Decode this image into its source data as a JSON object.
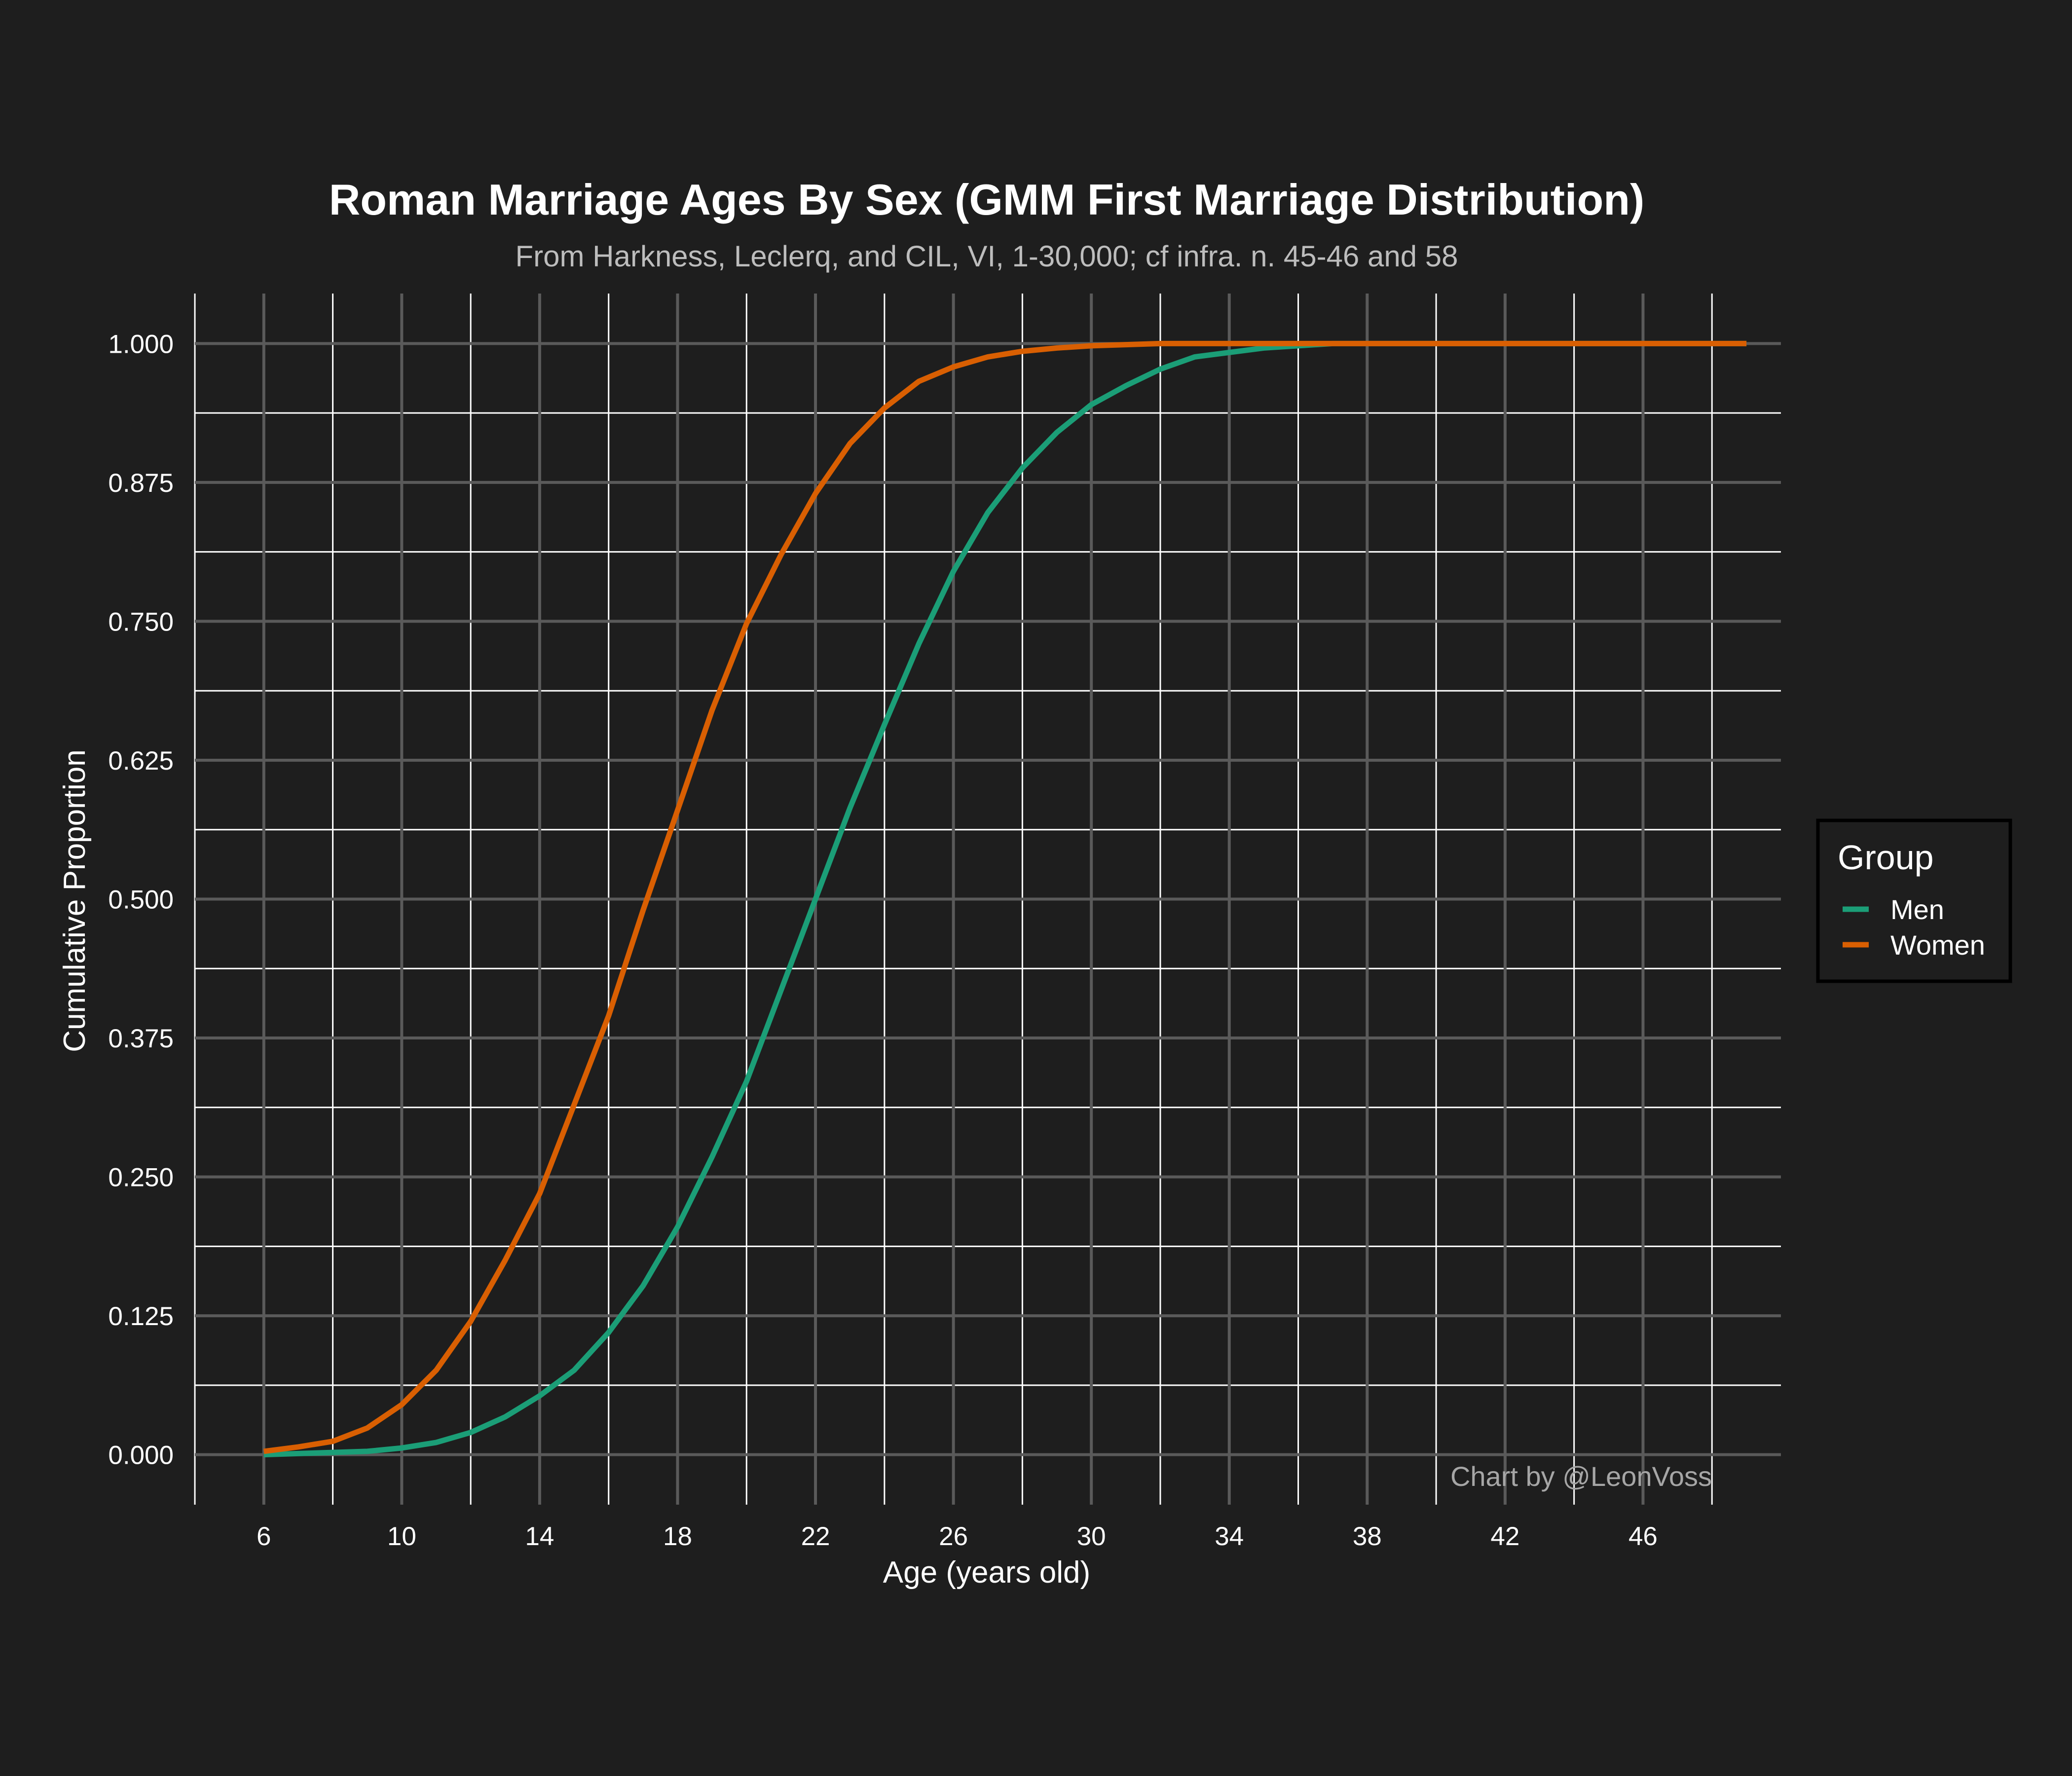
{
  "chart_data": {
    "type": "line",
    "title": "Roman Marriage Ages By Sex (GMM First Marriage Distribution)",
    "subtitle": "From Harkness, Leclerq, and CIL, VI, 1-30,000; cf infra. n. 45-46 and 58",
    "xlabel": "Age (years old)",
    "ylabel": "Cumulative Proportion",
    "caption": "Chart by @LeonVoss",
    "xlim": [
      4,
      50
    ],
    "ylim": [
      -0.045,
      1.045
    ],
    "x_ticks": [
      6,
      10,
      14,
      18,
      22,
      26,
      30,
      34,
      38,
      42,
      46
    ],
    "x_tick_labels": [
      "6",
      "10",
      "14",
      "18",
      "22",
      "26",
      "30",
      "34",
      "38",
      "42",
      "46"
    ],
    "y_ticks": [
      0,
      0.125,
      0.25,
      0.375,
      0.5,
      0.625,
      0.75,
      0.875,
      1.0
    ],
    "y_tick_labels": [
      "0.000",
      "0.125",
      "0.250",
      "0.375",
      "0.500",
      "0.625",
      "0.750",
      "0.875",
      "1.000"
    ],
    "grid": true,
    "legend_position": "right",
    "legend_title": "Group",
    "x": [
      6,
      7,
      8,
      9,
      10,
      11,
      12,
      13,
      14,
      15,
      16,
      17,
      18,
      19,
      20,
      21,
      22,
      23,
      24,
      25,
      26,
      27,
      28,
      29,
      30,
      31,
      32,
      33,
      34,
      35,
      36,
      37,
      38,
      39,
      40,
      41,
      42,
      43,
      44,
      45,
      46,
      47,
      48,
      49
    ],
    "series": [
      {
        "name": "Men",
        "color": "#1b9e77",
        "values": [
          0.0,
          0.001,
          0.002,
          0.003,
          0.006,
          0.011,
          0.02,
          0.034,
          0.053,
          0.076,
          0.11,
          0.152,
          0.205,
          0.268,
          0.336,
          0.418,
          0.5,
          0.582,
          0.657,
          0.73,
          0.795,
          0.848,
          0.888,
          0.92,
          0.945,
          0.962,
          0.977,
          0.988,
          0.992,
          0.996,
          0.998,
          1.0,
          1.0,
          1.0,
          1.0,
          1.0,
          1.0,
          1.0,
          1.0,
          1.0,
          1.0,
          1.0,
          1.0,
          1.0
        ]
      },
      {
        "name": "Women",
        "color": "#d95f02",
        "values": [
          0.003,
          0.007,
          0.012,
          0.024,
          0.045,
          0.076,
          0.12,
          0.175,
          0.235,
          0.315,
          0.395,
          0.49,
          0.58,
          0.67,
          0.748,
          0.81,
          0.865,
          0.91,
          0.942,
          0.966,
          0.979,
          0.988,
          0.993,
          0.996,
          0.998,
          0.999,
          1.0,
          1.0,
          1.0,
          1.0,
          1.0,
          1.0,
          1.0,
          1.0,
          1.0,
          1.0,
          1.0,
          1.0,
          1.0,
          1.0,
          1.0,
          1.0,
          1.0,
          1.0
        ]
      }
    ]
  }
}
